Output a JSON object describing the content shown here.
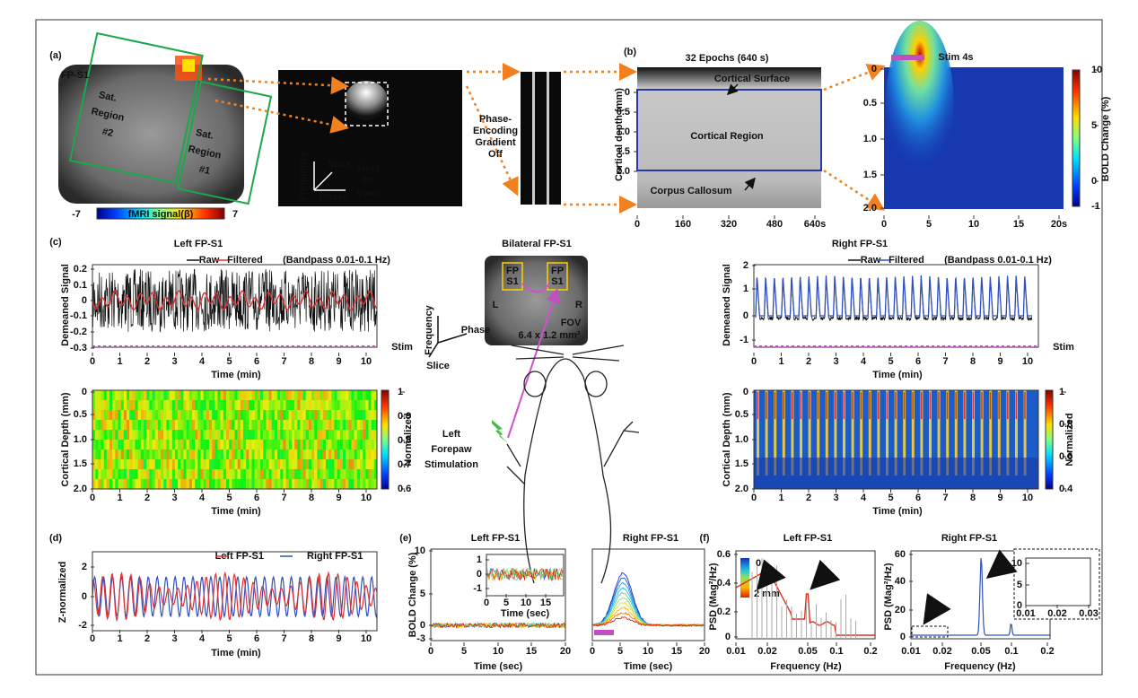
{
  "panel_a": {
    "label": "(a)",
    "region": "FP-S1",
    "sat_region_2": [
      "Sat.",
      "Region",
      "#2"
    ],
    "sat_region_1": [
      "Sat.",
      "Region",
      "#1"
    ],
    "colorbar_min": "-7",
    "colorbar_label": "fMRI signal(β)",
    "colorbar_max": "7",
    "axis_frequency": "Frequency",
    "axis_slice": "Slice",
    "axis_phase": "Phase",
    "fov": [
      "Field",
      "Of",
      "View"
    ],
    "gradient": [
      "Phase-",
      "Encoding",
      "Gradient"
    ],
    "gradient_state": "Off"
  },
  "panel_b": {
    "label": "(b)",
    "title": "32 Epochs (640 s)",
    "ylabel": "Cortical depth (mm)",
    "yticks": [
      "0",
      "0.5",
      "1.0",
      "1.5",
      "2.0"
    ],
    "xticks": [
      "0",
      "160",
      "320",
      "480",
      "640s"
    ],
    "surface": "Cortical Surface",
    "region": "Cortical Region",
    "callosum": "Corpus Callosum",
    "stim": "Stim 4s",
    "heat_yticks": [
      "0",
      "0.5",
      "1.0",
      "1.5",
      "2.0"
    ],
    "heat_xticks": [
      "0",
      "5",
      "10",
      "15",
      "20s"
    ],
    "colorbar_ticks": [
      "10",
      "5",
      "0",
      "-1"
    ],
    "colorbar_label": "BOLD Change (%)"
  },
  "panel_c": {
    "label": "(c)",
    "left": {
      "title": "Left FP-S1",
      "legend": [
        "Raw",
        "Filtered"
      ],
      "note": "(Bandpass 0.01-0.1 Hz)",
      "ylabel": "Demeaned Signal",
      "yticks": [
        "0.2",
        "0.1",
        "0",
        "-0.1",
        "-0.2",
        "-0.3"
      ],
      "xticks": [
        "0",
        "1",
        "2",
        "3",
        "4",
        "5",
        "6",
        "7",
        "8",
        "9",
        "10"
      ],
      "xlabel": "Time (min)",
      "stim": "Stim",
      "heat_ylabel": "Cortical Depth (mm)",
      "heat_yticks": [
        "0",
        "0.5",
        "1.0",
        "1.5",
        "2.0"
      ],
      "heat_xticks": [
        "0",
        "1",
        "2",
        "3",
        "4",
        "5",
        "6",
        "7",
        "8",
        "9",
        "10"
      ],
      "heat_xlabel": "Time (min)",
      "colorbar_ticks": [
        "1",
        "0.9",
        "0.8",
        "0.7",
        "0.6"
      ],
      "colorbar_label": "Normalized"
    },
    "center": {
      "title": "Bilateral FP-S1",
      "roi_left": [
        "FP",
        "S1"
      ],
      "roi_right": [
        "FP",
        "S1"
      ],
      "side_left": "L",
      "side_right": "R",
      "fov": "FOV",
      "fov_size": "6.4 x 1.2 mm²",
      "axis_frequency": "Frequency",
      "axis_phase": "Phase",
      "axis_slice": "Slice",
      "stimulation": [
        "Left",
        "Forepaw",
        "Stimulation"
      ]
    },
    "right": {
      "title": "Right FP-S1",
      "legend": [
        "Raw",
        "Filtered"
      ],
      "note": "(Bandpass 0.01-0.1 Hz)",
      "ylabel": "Demeaned Signal",
      "yticks": [
        "2",
        "1",
        "0",
        "-1"
      ],
      "xticks": [
        "0",
        "1",
        "2",
        "3",
        "4",
        "5",
        "6",
        "7",
        "8",
        "9",
        "10"
      ],
      "xlabel": "Time (min)",
      "stim": "Stim",
      "heat_ylabel": "Cortical Depth (mm)",
      "heat_yticks": [
        "0",
        "0.5",
        "1.0",
        "1.5",
        "2.0"
      ],
      "heat_xticks": [
        "0",
        "1",
        "2",
        "3",
        "4",
        "5",
        "6",
        "7",
        "8",
        "9",
        "10"
      ],
      "heat_xlabel": "Time (min)",
      "colorbar_ticks": [
        "1",
        "0.8",
        "0.6",
        "0.4"
      ],
      "colorbar_label": "Normalized"
    }
  },
  "panel_d": {
    "label": "(d)",
    "legend": [
      "Left FP-S1",
      "Right FP-S1"
    ],
    "ylabel": "Z-normalized",
    "yticks": [
      "2",
      "0",
      "-2"
    ],
    "xticks": [
      "0",
      "1",
      "2",
      "3",
      "4",
      "5",
      "6",
      "7",
      "8",
      "9",
      "10"
    ],
    "xlabel": "Time (min)"
  },
  "panel_e": {
    "label": "(e)",
    "left": {
      "title": "Left FP-S1",
      "ylabel": "BOLD Change (%)",
      "yticks": [
        "10",
        "5",
        "0",
        "-3"
      ],
      "xticks": [
        "0",
        "5",
        "10",
        "15",
        "20"
      ],
      "xlabel": "Time (sec)",
      "inset_yticks": [
        "1",
        "0",
        "-1"
      ],
      "inset_xticks": [
        "0",
        "5",
        "10",
        "15"
      ],
      "inset_xlabel": "Time (sec)"
    },
    "right": {
      "title": "Right FP-S1",
      "xticks": [
        "0",
        "5",
        "10",
        "15",
        "20"
      ],
      "xlabel": "Time (sec)",
      "depth_top": "0",
      "depth_bottom": "2 mm"
    }
  },
  "panel_f": {
    "label": "(f)",
    "left": {
      "title": "Left FP-S1",
      "ylabel": "PSD (Mag²/Hz)",
      "yticks": [
        "0.6",
        "0.4",
        "0.2",
        "0"
      ],
      "xticks": [
        "0.01",
        "0.02",
        "0.05",
        "0.1",
        "0.2"
      ],
      "xlabel": "Frequency (Hz)"
    },
    "right": {
      "title": "Right FP-S1",
      "ylabel": "PSD (Mag²/Hz)",
      "yticks": [
        "60",
        "40",
        "20",
        "0"
      ],
      "xticks": [
        "0.01",
        "0.02",
        "0.05",
        "0.1",
        "0.2"
      ],
      "xlabel": "Frequency (Hz)",
      "inset_yticks": [
        "10",
        "5",
        "0"
      ],
      "inset_xticks": [
        "0.01",
        "0.02",
        "0.03"
      ]
    }
  }
}
